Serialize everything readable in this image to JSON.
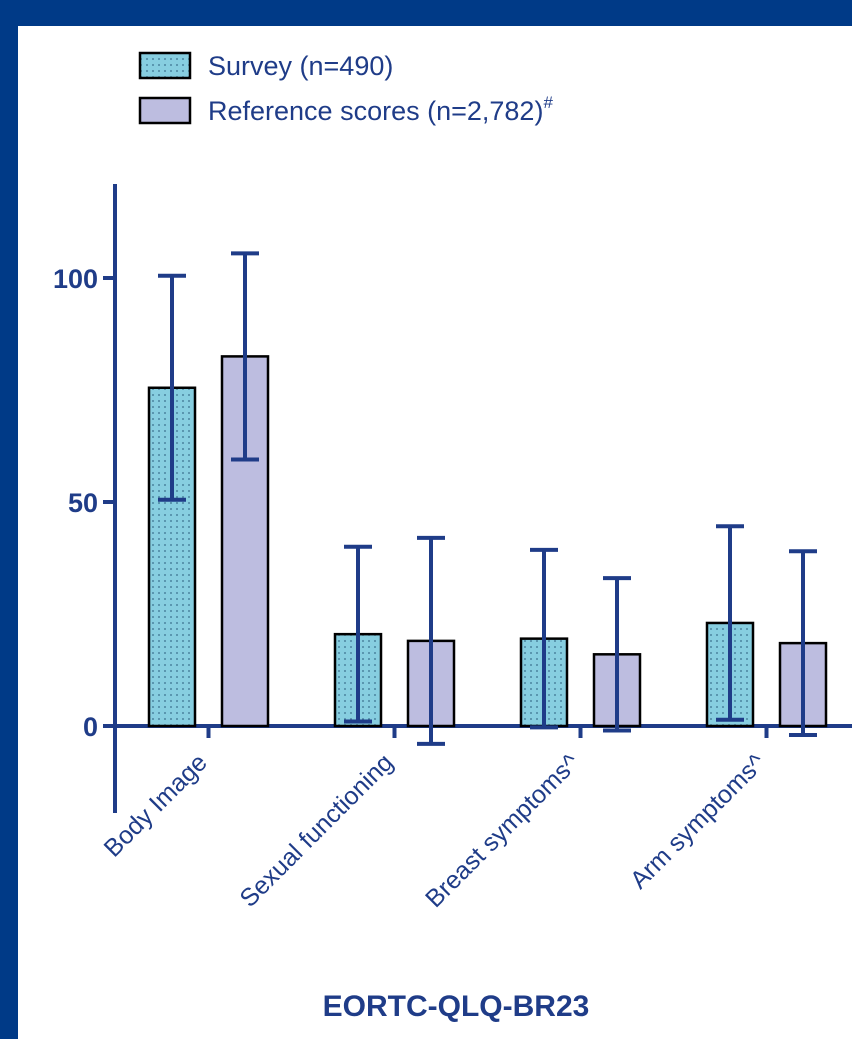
{
  "chart_data": {
    "type": "bar",
    "categories": [
      "Body Image",
      "Sexual functioning",
      "Breast symptoms^",
      "Arm symptoms^"
    ],
    "series": [
      {
        "name": "Survey (n=490)",
        "values": [
          75.5,
          20.5,
          19.5,
          23
        ],
        "error": [
          25,
          19.5,
          19.8,
          21.6
        ],
        "color": "#87CEE0",
        "pattern": "dotted"
      },
      {
        "name": "Reference scores (n=2,782)",
        "name_superscript": "#",
        "values": [
          82.5,
          19,
          16,
          18.5
        ],
        "error": [
          23,
          23,
          17,
          20.5
        ],
        "color": "#BDBDE0",
        "pattern": "solid"
      }
    ],
    "xlabel": "EORTC-QLQ-BR23",
    "ylabel": "",
    "yticks": [
      0,
      50,
      100
    ],
    "ylim": [
      -20,
      120
    ],
    "grid": false,
    "legend_position": "top-left",
    "axis_color": "#1F3C88"
  }
}
